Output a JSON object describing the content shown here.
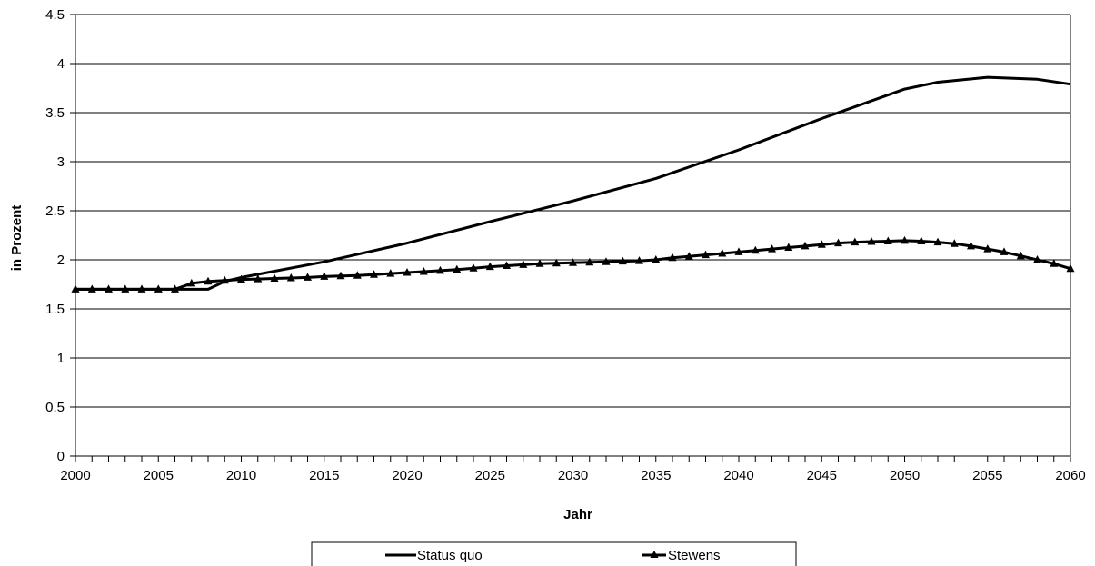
{
  "chart_data": {
    "type": "line",
    "title": "",
    "xlabel": "Jahr",
    "ylabel": "in Prozent",
    "xlim": [
      2000,
      2060
    ],
    "ylim": [
      0,
      4.5
    ],
    "x_ticks": [
      "2000",
      "2005",
      "2010",
      "2015",
      "2020",
      "2025",
      "2030",
      "2035",
      "2040",
      "2045",
      "2050",
      "2055",
      "2060"
    ],
    "y_ticks": [
      "0",
      "0.5",
      "1",
      "1.5",
      "2",
      "2.5",
      "3",
      "3.5",
      "4",
      "4.5"
    ],
    "grid": "horizontal",
    "legend": "bottom",
    "colors": {
      "line": "#000000",
      "grid": "#000000",
      "background": "#ffffff"
    },
    "series": [
      {
        "name": "Status quo",
        "marker": "none",
        "x": [
          2000,
          2005,
          2008,
          2009,
          2010,
          2015,
          2020,
          2025,
          2030,
          2035,
          2040,
          2045,
          2050,
          2052,
          2055,
          2058,
          2060
        ],
        "values": [
          1.7,
          1.7,
          1.7,
          1.78,
          1.82,
          1.98,
          2.17,
          2.39,
          2.6,
          2.83,
          3.12,
          3.44,
          3.74,
          3.81,
          3.86,
          3.84,
          3.79
        ]
      },
      {
        "name": "Stewens",
        "marker": "triangle",
        "x": [
          2000,
          2001,
          2002,
          2003,
          2004,
          2005,
          2006,
          2007,
          2008,
          2009,
          2010,
          2011,
          2012,
          2013,
          2014,
          2015,
          2016,
          2017,
          2018,
          2019,
          2020,
          2021,
          2022,
          2023,
          2024,
          2025,
          2026,
          2027,
          2028,
          2029,
          2030,
          2031,
          2032,
          2033,
          2034,
          2035,
          2036,
          2037,
          2038,
          2039,
          2040,
          2041,
          2042,
          2043,
          2044,
          2045,
          2046,
          2047,
          2048,
          2049,
          2050,
          2051,
          2052,
          2053,
          2054,
          2055,
          2056,
          2057,
          2058,
          2059,
          2060
        ],
        "values": [
          1.7,
          1.7,
          1.7,
          1.7,
          1.7,
          1.7,
          1.7,
          1.76,
          1.78,
          1.79,
          1.8,
          1.805,
          1.81,
          1.815,
          1.82,
          1.83,
          1.835,
          1.84,
          1.85,
          1.86,
          1.87,
          1.88,
          1.89,
          1.9,
          1.915,
          1.93,
          1.94,
          1.95,
          1.96,
          1.965,
          1.97,
          1.975,
          1.98,
          1.985,
          1.99,
          2.0,
          2.02,
          2.035,
          2.05,
          2.065,
          2.08,
          2.095,
          2.11,
          2.125,
          2.14,
          2.155,
          2.17,
          2.18,
          2.185,
          2.19,
          2.195,
          2.19,
          2.18,
          2.165,
          2.14,
          2.11,
          2.08,
          2.04,
          2.0,
          1.96,
          1.91
        ]
      }
    ]
  }
}
